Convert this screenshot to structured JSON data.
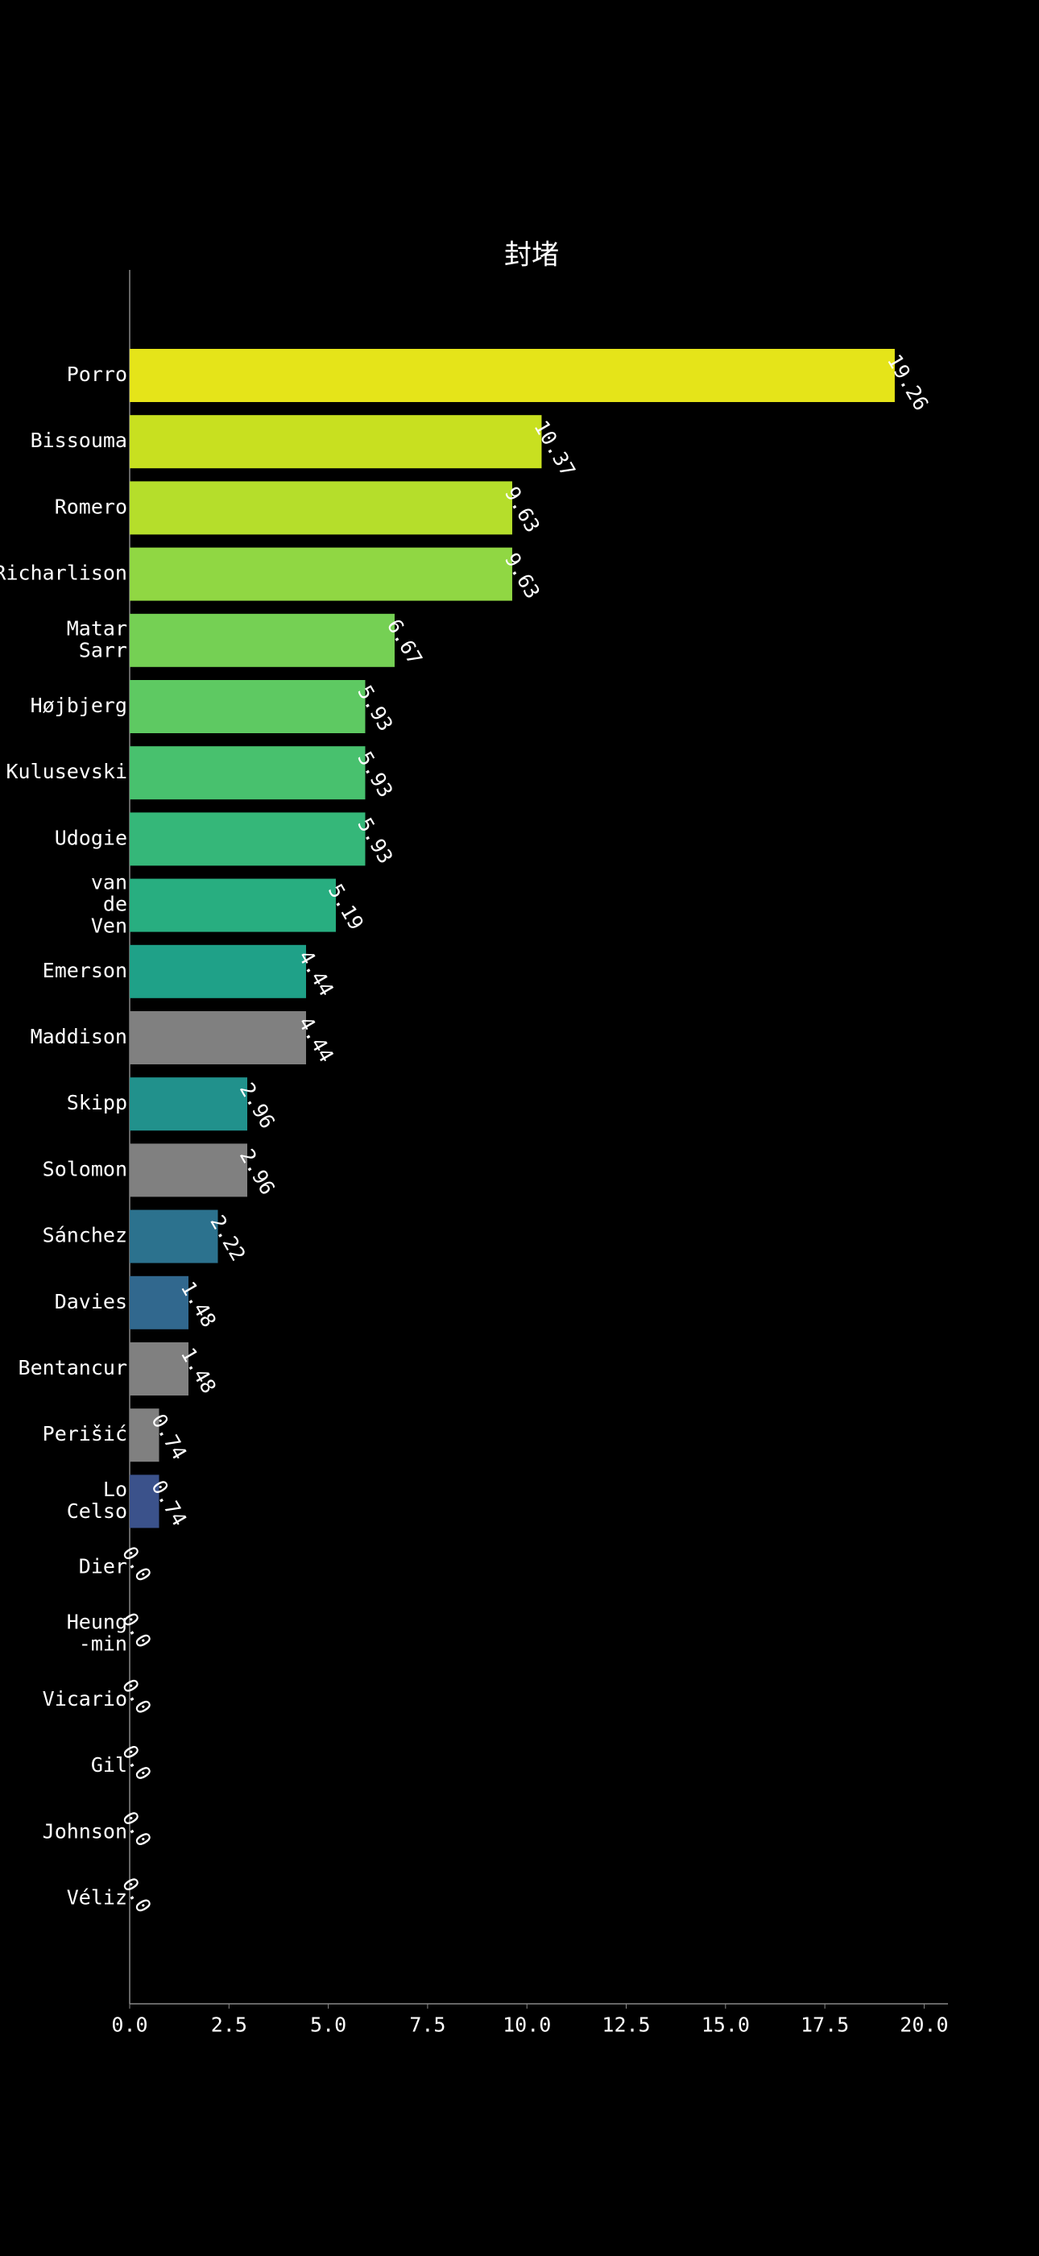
{
  "chart_data": {
    "type": "barh",
    "title": "封堵",
    "categories": [
      "Porro",
      "Bissouma",
      "Romero",
      "Richarlison",
      "Matar\nSarr",
      "Højbjerg",
      "Kulusevski",
      "Udogie",
      "van\nde\nVen",
      "Emerson",
      "Maddison",
      "Skipp",
      "Solomon",
      "Sánchez",
      "Davies",
      "Bentancur",
      "Perišić",
      "Lo\nCelso",
      "Dier",
      "Heung\n-min",
      "Vicario",
      "Gil",
      "Johnson",
      "Véliz"
    ],
    "values": [
      19.26,
      10.37,
      9.63,
      9.63,
      6.67,
      5.93,
      5.93,
      5.93,
      5.19,
      4.44,
      4.44,
      2.96,
      2.96,
      2.22,
      1.48,
      1.48,
      0.74,
      0.74,
      0,
      0,
      0,
      0,
      0,
      0
    ],
    "value_labels": [
      "19.26",
      "10.37",
      "9.63",
      "9.63",
      "6.67",
      "5.93",
      "5.93",
      "5.93",
      "5.19",
      "4.44",
      "4.44",
      "2.96",
      "2.96",
      "2.22",
      "1.48",
      "1.48",
      "0.74",
      "0.74",
      "0.0",
      "0.0",
      "0.0",
      "0.0",
      "0.0",
      "0.0"
    ],
    "colors": [
      "#e5e419",
      "#c8e020",
      "#b5de2b",
      "#90d743",
      "#75d054",
      "#5ec962",
      "#48c16e",
      "#35b779",
      "#28ae80",
      "#1fa188",
      "#808080",
      "#21918c",
      "#808080",
      "#2c728e",
      "#31688e",
      "#808080",
      "#808080",
      "#3b528b",
      "#414487",
      "#443a83",
      "#472d7b",
      "#482173",
      "#481467",
      "#440154"
    ],
    "xlim": [
      0,
      20.6
    ],
    "xticks": [
      {
        "value": 0,
        "label": "0.0"
      },
      2.5,
      {
        "value": 5,
        "label": "5.0"
      },
      7.5,
      {
        "value": 10,
        "label": "10.0"
      },
      12.5,
      {
        "value": 15,
        "label": "15.0"
      },
      17.5,
      {
        "value": 20,
        "label": "20.0"
      }
    ]
  }
}
